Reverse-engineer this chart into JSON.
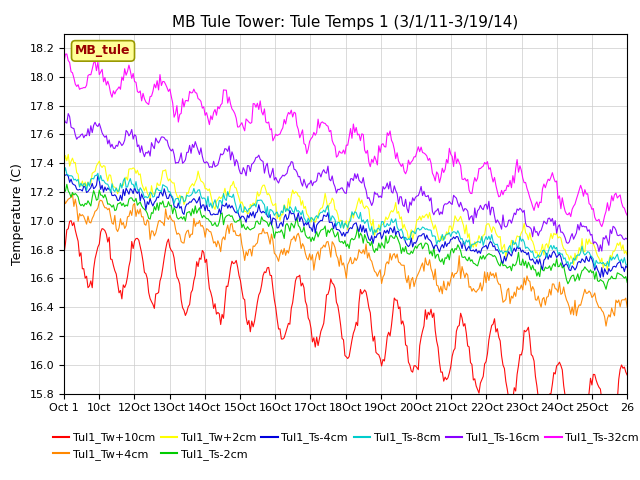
{
  "title": "MB Tule Tower: Tule Temps 1 (3/1/11-3/19/14)",
  "ylabel": "Temperature (C)",
  "ylim": [
    15.8,
    18.3
  ],
  "x_tick_labels": [
    "Oct 1",
    "10ct",
    "12Oct",
    "13Oct",
    "14Oct",
    "15Oct",
    "16Oct",
    "17Oct",
    "18Oct",
    "19Oct",
    "20Oct",
    "21Oct",
    "22Oct",
    "23Oct",
    "24Oct",
    "25Oct",
    "26"
  ],
  "legend_label": "MB_tule",
  "series_order": [
    "Tul1_Tw+10cm",
    "Tul1_Tw+4cm",
    "Tul1_Tw+2cm",
    "Tul1_Ts-2cm",
    "Tul1_Ts-4cm",
    "Tul1_Ts-8cm",
    "Tul1_Ts-16cm",
    "Tul1_Ts-32cm"
  ],
  "series": {
    "Tul1_Tw+10cm": {
      "color": "#ff0000",
      "base": 16.8,
      "amplitude": 0.2,
      "trend": -0.0025,
      "noise": 0.03,
      "phase": 0.0,
      "period": 23
    },
    "Tul1_Tw+4cm": {
      "color": "#ff8800",
      "base": 17.1,
      "amplitude": 0.07,
      "trend": -0.0018,
      "noise": 0.03,
      "phase": 0.4,
      "period": 23
    },
    "Tul1_Tw+2cm": {
      "color": "#ffff00",
      "base": 17.35,
      "amplitude": 0.08,
      "trend": -0.0015,
      "noise": 0.025,
      "phase": 0.6,
      "period": 23
    },
    "Tul1_Ts-2cm": {
      "color": "#00cc00",
      "base": 17.18,
      "amplitude": 0.04,
      "trend": -0.0015,
      "noise": 0.02,
      "phase": 0.8,
      "period": 23
    },
    "Tul1_Ts-4cm": {
      "color": "#0000dd",
      "base": 17.25,
      "amplitude": 0.04,
      "trend": -0.0015,
      "noise": 0.02,
      "phase": 1.0,
      "period": 23
    },
    "Tul1_Ts-8cm": {
      "color": "#00cccc",
      "base": 17.3,
      "amplitude": 0.04,
      "trend": -0.0015,
      "noise": 0.02,
      "phase": 1.2,
      "period": 23
    },
    "Tul1_Ts-16cm": {
      "color": "#8800ff",
      "base": 17.65,
      "amplitude": 0.06,
      "trend": -0.002,
      "noise": 0.025,
      "phase": 1.4,
      "period": 23
    },
    "Tul1_Ts-32cm": {
      "color": "#ff00ff",
      "base": 18.05,
      "amplitude": 0.1,
      "trend": -0.0025,
      "noise": 0.03,
      "phase": 1.6,
      "period": 23
    }
  },
  "n_points": 400,
  "background_color": "#ffffff",
  "grid_color": "#cccccc",
  "legend_box_color": "#ffff99",
  "legend_box_edge": "#999900",
  "title_fontsize": 11,
  "axis_fontsize": 9,
  "tick_fontsize": 8,
  "legend_fontsize": 8
}
